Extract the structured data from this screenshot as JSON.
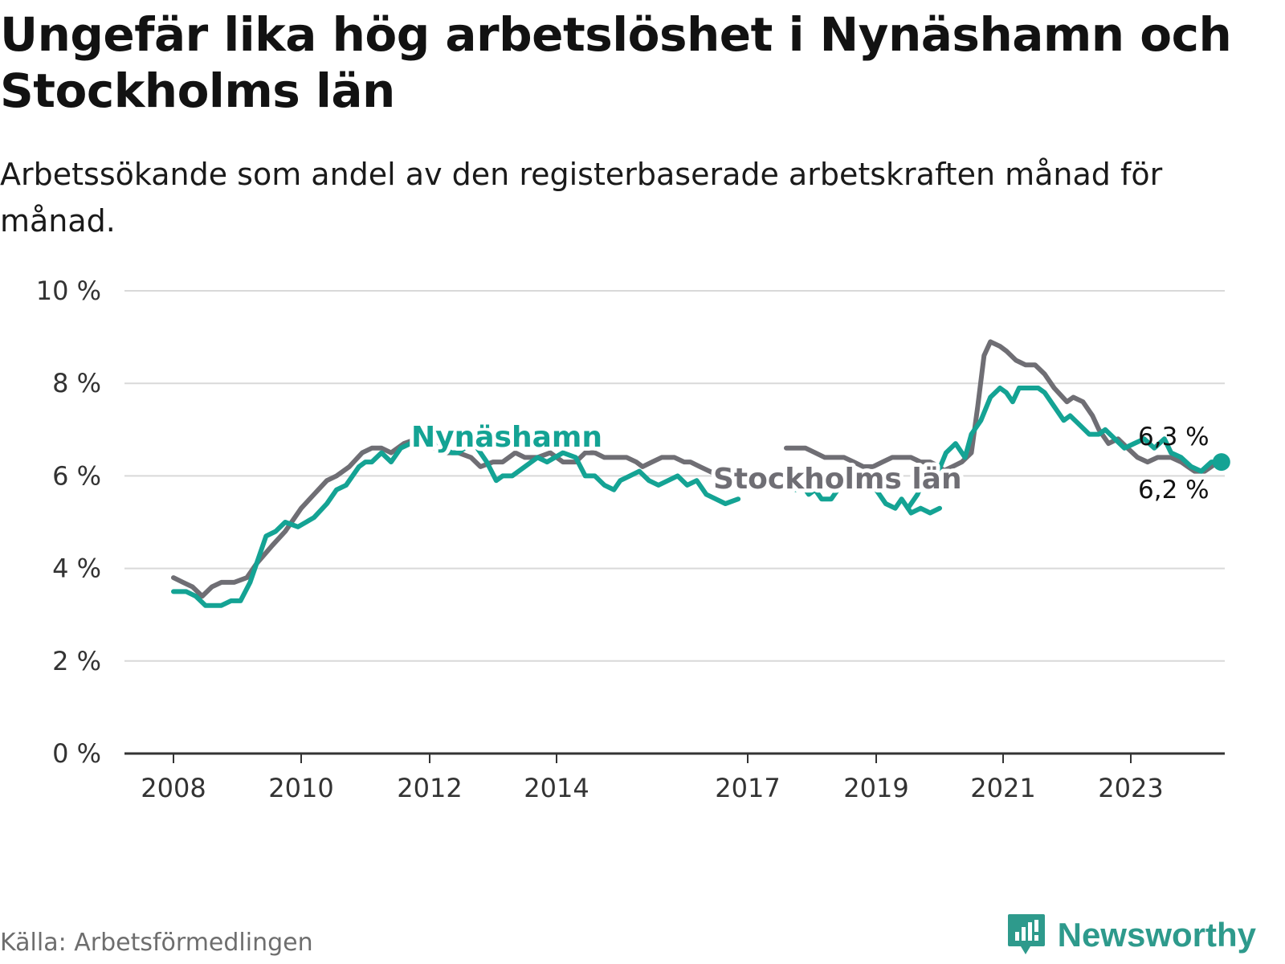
{
  "header": {
    "title": "Ungefär lika hög arbetslöshet i Nynäshamn och Stockholms län",
    "subtitle": "Arbetssökande som andel av den registerbaserade arbetskraften månad för månad."
  },
  "footer": {
    "source": "Källa: Arbetsförmedlingen",
    "brand": "Newsworthy"
  },
  "colors": {
    "nynashamn": "#14a394",
    "stockholm": "#6f6e74",
    "grid": "#d9d9d9",
    "axis": "#333333"
  },
  "chart_data": {
    "type": "line",
    "title": "Ungefär lika hög arbetslöshet i Nynäshamn och Stockholms län",
    "subtitle": "Arbetssökande som andel av den registerbaserade arbetskraften månad för månad.",
    "xlabel": "",
    "ylabel": "",
    "ylim": [
      0,
      10
    ],
    "xlim": [
      2007.2,
      2024.4
    ],
    "y_ticks": [
      0,
      2,
      4,
      6,
      8,
      10
    ],
    "y_tick_labels": [
      "0 %",
      "2 %",
      "4 %",
      "6 %",
      "8 %",
      "10 %"
    ],
    "x_ticks": [
      2008,
      2010,
      2012,
      2014,
      2017,
      2019,
      2021,
      2023
    ],
    "x_tick_labels": [
      "2008",
      "2010",
      "2012",
      "2014",
      "2017",
      "2019",
      "2021",
      "2023"
    ],
    "grid": true,
    "series": [
      {
        "name": "Nynäshamn",
        "color": "#14a394",
        "end_label": "6,3 %",
        "points": [
          [
            2008.0,
            3.5
          ],
          [
            2008.2,
            3.5
          ],
          [
            2008.35,
            3.4
          ],
          [
            2008.5,
            3.2
          ],
          [
            2008.75,
            3.2
          ],
          [
            2008.9,
            3.3
          ],
          [
            2009.05,
            3.3
          ],
          [
            2009.2,
            3.7
          ],
          [
            2009.45,
            4.7
          ],
          [
            2009.6,
            4.8
          ],
          [
            2009.75,
            5.0
          ],
          [
            2009.95,
            4.9
          ],
          [
            2010.2,
            5.1
          ],
          [
            2010.4,
            5.4
          ],
          [
            2010.55,
            5.7
          ],
          [
            2010.7,
            5.8
          ],
          [
            2010.9,
            6.2
          ],
          [
            2011.0,
            6.3
          ],
          [
            2011.1,
            6.3
          ],
          [
            2011.25,
            6.5
          ],
          [
            2011.4,
            6.3
          ],
          [
            2011.55,
            6.6
          ],
          [
            2011.7,
            6.7
          ],
          [
            2011.85,
            6.9
          ],
          [
            2011.95,
            7.1
          ],
          [
            2012.05,
            6.9
          ],
          [
            2012.2,
            6.6
          ],
          [
            2012.35,
            6.5
          ],
          [
            2012.45,
            6.5
          ],
          [
            2012.55,
            6.6
          ],
          [
            2012.65,
            6.7
          ],
          [
            2012.75,
            6.6
          ],
          [
            2012.9,
            6.3
          ],
          [
            2013.05,
            5.9
          ],
          [
            2013.15,
            6.0
          ],
          [
            2013.3,
            6.0
          ],
          [
            2013.5,
            6.2
          ],
          [
            2013.7,
            6.4
          ],
          [
            2013.85,
            6.3
          ]
        ]
      },
      {
        "name": "Stockholms län",
        "color": "#6f6e74",
        "end_label": "6,2 %",
        "points": [
          [
            2008.0,
            3.8
          ],
          [
            2008.15,
            3.7
          ],
          [
            2008.3,
            3.6
          ],
          [
            2008.45,
            3.4
          ],
          [
            2008.6,
            3.6
          ],
          [
            2008.75,
            3.7
          ],
          [
            2008.95,
            3.7
          ],
          [
            2009.15,
            3.8
          ],
          [
            2009.3,
            4.1
          ],
          [
            2009.55,
            4.5
          ],
          [
            2009.75,
            4.8
          ],
          [
            2010.0,
            5.3
          ],
          [
            2010.2,
            5.6
          ],
          [
            2010.4,
            5.9
          ],
          [
            2010.55,
            6.0
          ],
          [
            2010.75,
            6.2
          ],
          [
            2010.95,
            6.5
          ],
          [
            2011.1,
            6.6
          ],
          [
            2011.25,
            6.6
          ],
          [
            2011.4,
            6.5
          ],
          [
            2011.6,
            6.7
          ],
          [
            2011.8,
            6.8
          ],
          [
            2011.95,
            6.6
          ],
          [
            2012.1,
            6.6
          ],
          [
            2012.25,
            6.5
          ],
          [
            2012.45,
            6.5
          ],
          [
            2012.65,
            6.4
          ],
          [
            2012.8,
            6.2
          ],
          [
            2013.0,
            6.3
          ],
          [
            2013.15,
            6.3
          ],
          [
            2013.35,
            6.5
          ],
          [
            2013.5,
            6.4
          ],
          [
            2013.7,
            6.4
          ],
          [
            2013.9,
            6.5
          ],
          [
            2014.1,
            6.3
          ],
          [
            2014.3,
            6.3
          ],
          [
            2014.45,
            6.5
          ],
          [
            2014.6,
            6.5
          ]
        ]
      }
    ],
    "stockholm_segment_2": [
      [
        2017.6,
        6.6
      ],
      [
        2017.75,
        6.6
      ],
      [
        2017.9,
        6.6
      ],
      [
        2018.05,
        6.5
      ],
      [
        2018.2,
        6.4
      ],
      [
        2018.35,
        6.4
      ],
      [
        2018.5,
        6.4
      ],
      [
        2018.65,
        6.3
      ],
      [
        2018.8,
        6.2
      ],
      [
        2018.95,
        6.2
      ],
      [
        2019.1,
        6.3
      ],
      [
        2019.25,
        6.4
      ],
      [
        2019.4,
        6.4
      ],
      [
        2019.55,
        6.4
      ],
      [
        2019.7,
        6.3
      ],
      [
        2019.85,
        6.3
      ],
      [
        2020.0,
        6.2
      ],
      [
        2020.15,
        6.0
      ],
      [
        2020.3,
        6.0
      ]
    ],
    "nynashamn_segment_2": [
      [
        2017.6,
        6.0
      ],
      [
        2017.75,
        5.7
      ],
      [
        2017.85,
        5.8
      ],
      [
        2017.95,
        5.6
      ],
      [
        2018.05,
        5.7
      ],
      [
        2018.15,
        5.5
      ],
      [
        2018.3,
        5.5
      ],
      [
        2018.45,
        5.8
      ],
      [
        2018.6,
        5.9
      ],
      [
        2018.8,
        6.0
      ],
      [
        2018.95,
        5.8
      ],
      [
        2019.05,
        5.6
      ],
      [
        2019.15,
        5.4
      ],
      [
        2019.3,
        5.3
      ],
      [
        2019.4,
        5.5
      ],
      [
        2019.55,
        5.2
      ],
      [
        2019.7,
        5.3
      ],
      [
        2019.85,
        5.2
      ],
      [
        2020.0,
        5.3
      ]
    ],
    "labels": {
      "nynashamn": "Nynäshamn",
      "stockholm": "Stockholms län",
      "nynashamn_end": "6,3 %",
      "stockholm_end": "6,2 %"
    }
  }
}
